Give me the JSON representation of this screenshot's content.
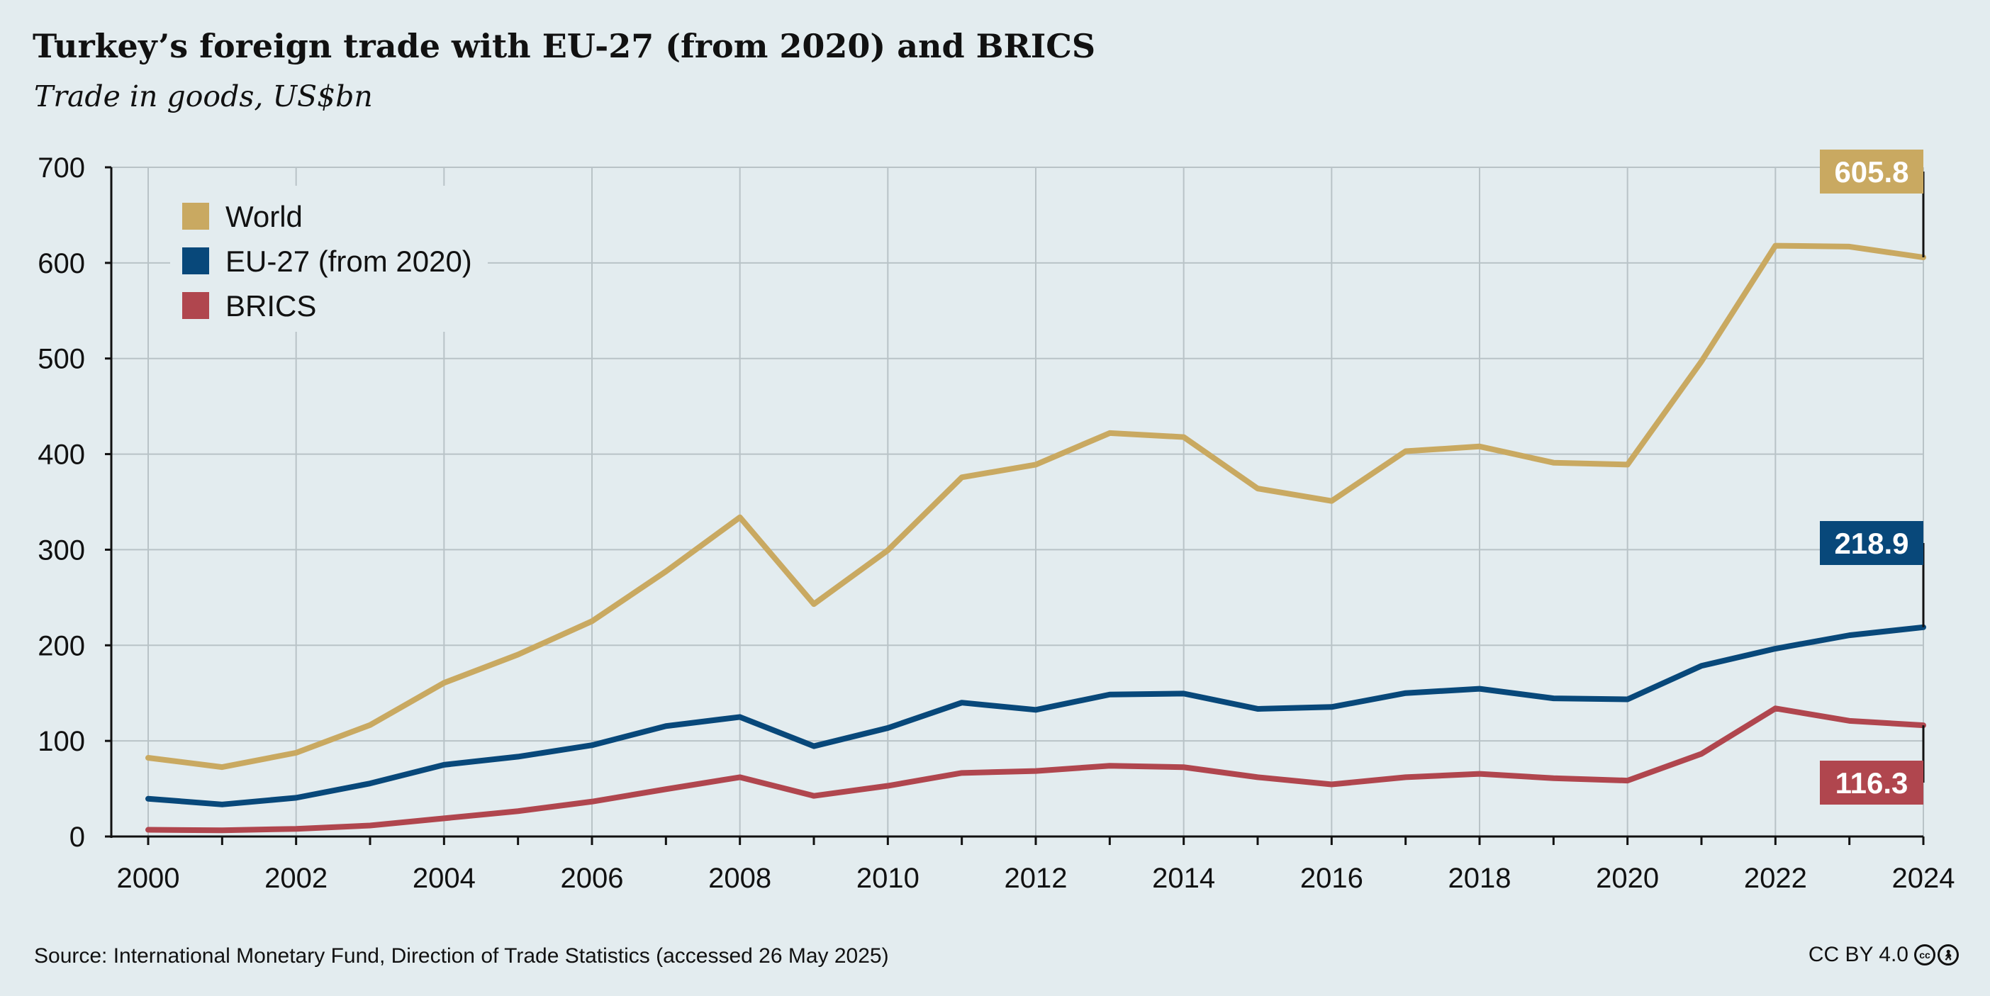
{
  "title": "Turkey’s foreign trade with EU-27 (from 2020) and BRICS",
  "subtitle": "Trade in goods, US$bn",
  "source": "Source: International Monetary Fund, Direction of Trade Statistics (accessed 26 May 2025)",
  "license": "CC BY 4.0",
  "chart_data": {
    "type": "line",
    "title": "Turkey’s foreign trade with EU-27 (from 2020) and BRICS",
    "subtitle": "Trade in goods, US$bn",
    "xlabel": "",
    "ylabel": "",
    "x": [
      2000,
      2001,
      2002,
      2003,
      2004,
      2005,
      2006,
      2007,
      2008,
      2009,
      2010,
      2011,
      2012,
      2013,
      2014,
      2015,
      2016,
      2017,
      2018,
      2019,
      2020,
      2021,
      2022,
      2023,
      2024
    ],
    "xlim": [
      2000,
      2024
    ],
    "ylim": [
      0,
      700
    ],
    "x_ticks": [
      "2000",
      "2002",
      "2004",
      "2006",
      "2008",
      "2010",
      "2012",
      "2014",
      "2016",
      "2018",
      "2020",
      "2022",
      "2024"
    ],
    "y_ticks": [
      "0",
      "100",
      "200",
      "300",
      "400",
      "500",
      "600",
      "700"
    ],
    "grid": true,
    "legend_position": "top-left",
    "series": [
      {
        "name": "World",
        "color": "#c9a961",
        "values": [
          82.3,
          72.6,
          87.6,
          116.6,
          160.7,
          190.3,
          225.2,
          277.3,
          333.9,
          243.1,
          299.4,
          375.7,
          389.0,
          422.0,
          417.8,
          364.0,
          351.0,
          403.0,
          408.0,
          391.0,
          389.0,
          497.0,
          618.0,
          617.0,
          605.8
        ],
        "end_label": "605.8"
      },
      {
        "name": "EU-27 (from 2020)",
        "color": "#08487a",
        "values": [
          39.5,
          33.5,
          40.5,
          55.5,
          75.0,
          83.5,
          95.5,
          115.5,
          125.0,
          94.5,
          113.5,
          140.0,
          132.5,
          148.5,
          149.5,
          133.5,
          135.5,
          150.0,
          154.5,
          144.5,
          143.5,
          178.5,
          196.5,
          210.5,
          218.9
        ],
        "end_label": "218.9"
      },
      {
        "name": "BRICS",
        "color": "#b0464e",
        "values": [
          7.0,
          6.5,
          8.0,
          11.5,
          19.0,
          26.5,
          36.5,
          49.5,
          62.0,
          42.5,
          53.0,
          66.5,
          68.5,
          74.0,
          72.5,
          62.0,
          54.5,
          62.0,
          65.5,
          61.0,
          58.5,
          86.5,
          134.0,
          121.0,
          116.3
        ],
        "end_label": "116.3"
      }
    ]
  }
}
